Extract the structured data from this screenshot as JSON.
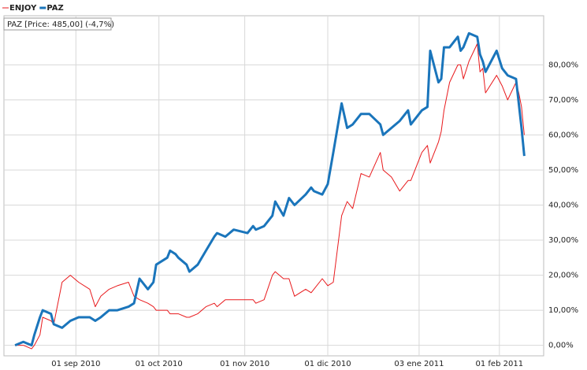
{
  "chart_data": {
    "type": "line",
    "annotation": "PAZ [Price: 485,00] (-4,7%)",
    "x": [
      "2010-08-10",
      "2010-08-13",
      "2010-08-16",
      "2010-08-17",
      "2010-08-19",
      "2010-08-20",
      "2010-08-23",
      "2010-08-24",
      "2010-08-27",
      "2010-08-30",
      "2010-09-02",
      "2010-09-06",
      "2010-09-08",
      "2010-09-10",
      "2010-09-13",
      "2010-09-16",
      "2010-09-20",
      "2010-09-22",
      "2010-09-24",
      "2010-09-27",
      "2010-09-29",
      "2010-09-30",
      "2010-10-04",
      "2010-10-05",
      "2010-10-07",
      "2010-10-08",
      "2010-10-11",
      "2010-10-12",
      "2010-10-15",
      "2010-10-18",
      "2010-10-21",
      "2010-10-22",
      "2010-10-25",
      "2010-10-28",
      "2010-11-02",
      "2010-11-04",
      "2010-11-05",
      "2010-11-08",
      "2010-11-11",
      "2010-11-12",
      "2010-11-15",
      "2010-11-17",
      "2010-11-19",
      "2010-11-23",
      "2010-11-25",
      "2010-11-26",
      "2010-11-29",
      "2010-12-01",
      "2010-12-03",
      "2010-12-06",
      "2010-12-08",
      "2010-12-10",
      "2010-12-13",
      "2010-12-16",
      "2010-12-20",
      "2010-12-21",
      "2010-12-24",
      "2010-12-27",
      "2010-12-30",
      "2010-12-31",
      "2011-01-04",
      "2011-01-06",
      "2011-01-07",
      "2011-01-10",
      "2011-01-11",
      "2011-01-12",
      "2011-01-14",
      "2011-01-17",
      "2011-01-18",
      "2011-01-19",
      "2011-01-21",
      "2011-01-24",
      "2011-01-25",
      "2011-01-26",
      "2011-01-27",
      "2011-01-31",
      "2011-02-02",
      "2011-02-04",
      "2011-02-07",
      "2011-02-08",
      "2011-02-09",
      "2011-02-10"
    ],
    "series": [
      {
        "name": "ENJOY",
        "color": "#e8191c",
        "values": [
          0,
          0,
          -1,
          0,
          3,
          8,
          7,
          6,
          18,
          20,
          18,
          16,
          11,
          14,
          16,
          17,
          18,
          14,
          13,
          12,
          11,
          10,
          10,
          9,
          9,
          9,
          8,
          8,
          9,
          11,
          12,
          11,
          13,
          13,
          13,
          13,
          12,
          13,
          20,
          21,
          19,
          19,
          14,
          16,
          15,
          16,
          19,
          17,
          18,
          37,
          41,
          39,
          49,
          48,
          55,
          50,
          48,
          44,
          47,
          47,
          55,
          57,
          52,
          58,
          61,
          67,
          75,
          80,
          80,
          76,
          81,
          86,
          78,
          79,
          72,
          77,
          74,
          70,
          75,
          72,
          68,
          60
        ]
      },
      {
        "name": "PAZ",
        "color": "#1a75bb",
        "values": [
          0,
          1,
          0,
          3,
          8,
          10,
          9,
          6,
          5,
          7,
          8,
          8,
          7,
          8,
          10,
          10,
          11,
          12,
          19,
          16,
          18,
          23,
          25,
          27,
          26,
          25,
          23,
          21,
          23,
          27,
          31,
          32,
          31,
          33,
          32,
          34,
          33,
          34,
          37,
          41,
          37,
          42,
          40,
          43,
          45,
          44,
          43,
          46,
          55,
          69,
          62,
          63,
          66,
          66,
          63,
          60,
          62,
          64,
          67,
          63,
          67,
          68,
          84,
          75,
          76,
          85,
          85,
          88,
          84,
          85,
          89,
          88,
          83,
          81,
          78,
          84,
          79,
          77,
          76,
          69,
          62,
          54
        ]
      }
    ],
    "xlim": [
      "2010-08-06",
      "2011-02-17"
    ],
    "xticks": [
      {
        "value": "2010-09-01",
        "label": "01 sep 2010"
      },
      {
        "value": "2010-10-01",
        "label": "01 oct 2010"
      },
      {
        "value": "2010-11-01",
        "label": "01 nov 2010"
      },
      {
        "value": "2010-12-01",
        "label": "01 dic 2010"
      },
      {
        "value": "2011-01-03",
        "label": "03 ene 2011"
      },
      {
        "value": "2011-02-01",
        "label": "01 feb 2011"
      }
    ],
    "ylim": [
      -3,
      94
    ],
    "yticks": [
      {
        "value": 0,
        "label": "0,00%"
      },
      {
        "value": 10,
        "label": "10,00%"
      },
      {
        "value": 20,
        "label": "20,00%"
      },
      {
        "value": 30,
        "label": "30,00%"
      },
      {
        "value": 40,
        "label": "40,00%"
      },
      {
        "value": 50,
        "label": "50,00%"
      },
      {
        "value": 60,
        "label": "60,00%"
      },
      {
        "value": 70,
        "label": "70,00%"
      },
      {
        "value": 80,
        "label": "80,00%"
      }
    ],
    "grid": true
  }
}
